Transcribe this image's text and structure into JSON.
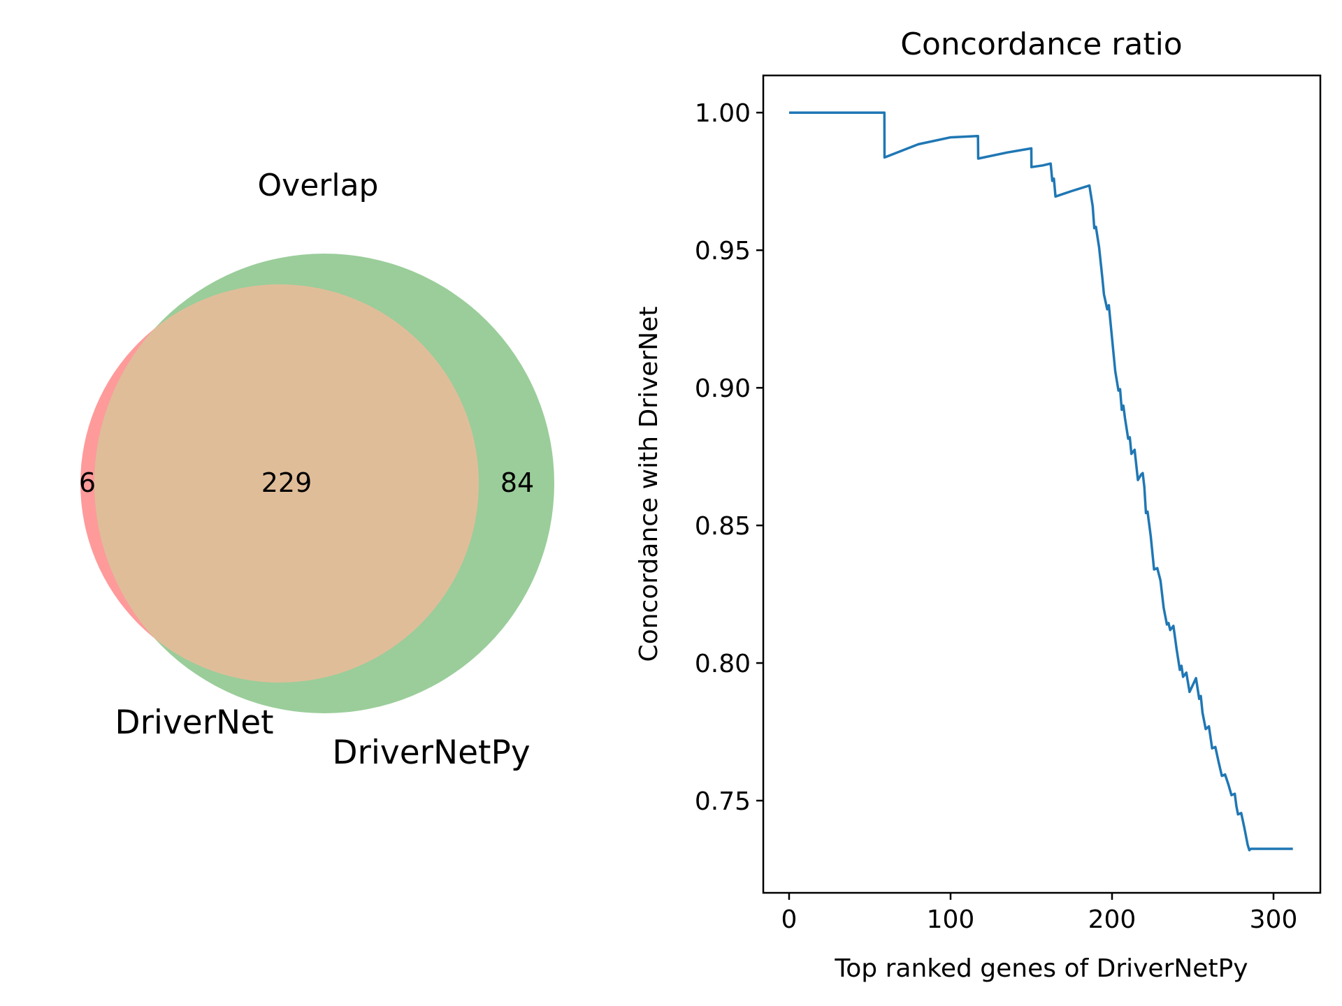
{
  "venn": {
    "title": "Overlap",
    "sets": [
      {
        "name": "DriverNet",
        "label": "DriverNet",
        "only_count": "6",
        "color": "#ff9a9a"
      },
      {
        "name": "DriverNetPy",
        "label": "DriverNetPy",
        "only_count": "84",
        "color": "#9acd9a"
      }
    ],
    "intersection_count": "229",
    "intersection_color": "#e0bd99"
  },
  "chart_data": {
    "type": "line",
    "title": "Concordance ratio",
    "xlabel": "Top ranked genes of DriverNetPy",
    "ylabel": "Concordance with DriverNet",
    "xlim": [
      -16,
      329
    ],
    "ylim": [
      0.7165,
      1.0135
    ],
    "x_ticks": [
      0,
      100,
      200,
      300
    ],
    "x_tick_labels": [
      "0",
      "100",
      "200",
      "300"
    ],
    "y_ticks": [
      0.75,
      0.8,
      0.85,
      0.9,
      0.95,
      1.0
    ],
    "y_tick_labels": [
      "0.75",
      "0.80",
      "0.85",
      "0.90",
      "0.95",
      "1.00"
    ],
    "grid": false,
    "line_color": "#1f77b4",
    "series": [
      {
        "name": "Concordance with DriverNet",
        "x": [
          0,
          59,
          59.1,
          80,
          100,
          117,
          117.1,
          135,
          150,
          150.1,
          157,
          162,
          163,
          164,
          165,
          175,
          186,
          188,
          189,
          190,
          192,
          194,
          195,
          197,
          198,
          200,
          202,
          204,
          205,
          206,
          207,
          208,
          210,
          211,
          212,
          214,
          216,
          218,
          219,
          220,
          221,
          222,
          224,
          226,
          228,
          230,
          232,
          234,
          235,
          236,
          238,
          240,
          242,
          243,
          244,
          246,
          248,
          250,
          252,
          254,
          255,
          256,
          258,
          260,
          261,
          262,
          264,
          266,
          268,
          270,
          272,
          274,
          276,
          277,
          278,
          280,
          282,
          284,
          285,
          286,
          288,
          290,
          292,
          294,
          296,
          298,
          300,
          302,
          304,
          306,
          308,
          310,
          312
        ],
        "y": [
          1.0,
          1.0,
          0.9837,
          0.9885,
          0.991,
          0.9915,
          0.9833,
          0.9855,
          0.987,
          0.9802,
          0.9808,
          0.9815,
          0.9752,
          0.976,
          0.9695,
          0.9715,
          0.9735,
          0.966,
          0.958,
          0.9585,
          0.951,
          0.94,
          0.934,
          0.9285,
          0.93,
          0.918,
          0.906,
          0.899,
          0.8995,
          0.892,
          0.8935,
          0.889,
          0.8815,
          0.882,
          0.876,
          0.8775,
          0.8665,
          0.8685,
          0.869,
          0.864,
          0.8545,
          0.855,
          0.846,
          0.834,
          0.8345,
          0.83,
          0.82,
          0.814,
          0.8145,
          0.812,
          0.8135,
          0.805,
          0.7975,
          0.799,
          0.795,
          0.7965,
          0.7895,
          0.792,
          0.7945,
          0.787,
          0.788,
          0.782,
          0.776,
          0.777,
          0.773,
          0.769,
          0.7695,
          0.764,
          0.759,
          0.7595,
          0.756,
          0.752,
          0.7525,
          0.748,
          0.745,
          0.7455,
          0.74,
          0.734,
          0.732,
          0.7325,
          0.7325,
          0.7325,
          0.7325,
          0.7325,
          0.7325,
          0.7325,
          0.7325,
          0.7325,
          0.7325,
          0.7325,
          0.7325,
          0.7325,
          0.7325
        ]
      }
    ]
  }
}
